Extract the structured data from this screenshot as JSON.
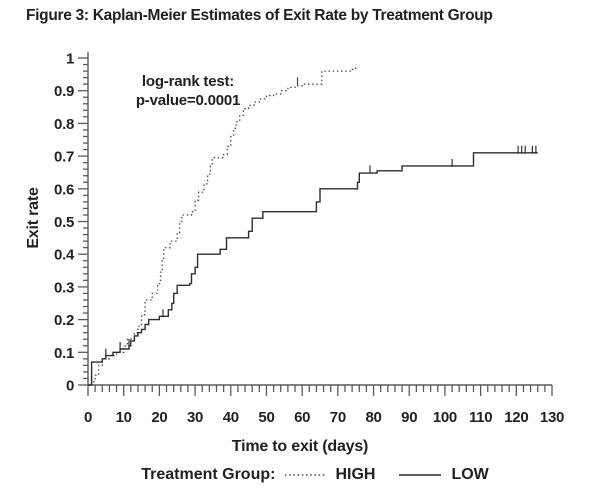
{
  "title": "Figure 3: Kaplan-Meier Estimates of  Exit Rate by Treatment Group",
  "annotation": {
    "line1": "log-rank test:",
    "line2": "p-value=0.0001"
  },
  "legend": {
    "label": "Treatment Group:",
    "entries": [
      {
        "name": "HIGH",
        "style": "dotted"
      },
      {
        "name": "LOW",
        "style": "solid"
      }
    ]
  },
  "colors": {
    "ink": "#231f20",
    "axis": "#595a5c",
    "curve_high": "#4b4b4b",
    "curve_low": "#2e2e2e"
  },
  "chart_data": {
    "type": "line",
    "subtype": "kaplan-meier-step",
    "title": "Figure 3: Kaplan-Meier Estimates of  Exit Rate by Treatment Group",
    "xlabel": "Time to exit (days)",
    "ylabel": "Exit rate",
    "xlim": [
      0,
      130
    ],
    "ylim": [
      0,
      1
    ],
    "grid": false,
    "legend_position": "bottom",
    "annotation": "log-rank test: p-value=0.0001",
    "x_major_ticks": [
      0,
      10,
      20,
      30,
      40,
      50,
      60,
      70,
      80,
      90,
      100,
      110,
      120,
      130
    ],
    "x_tick_labels": [
      "0",
      "10",
      "20",
      "30",
      "40",
      "50",
      "60",
      "70",
      "80",
      "90",
      "100",
      "110",
      "120",
      "130"
    ],
    "x_minor_step": 2,
    "y_major_ticks": [
      0,
      0.1,
      0.2,
      0.3,
      0.4,
      0.5,
      0.6,
      0.7,
      0.8,
      0.9,
      1
    ],
    "y_tick_labels": [
      "0",
      "0.1",
      "0.2",
      "0.3",
      "0.4",
      "0.5",
      "0.6",
      "0.7",
      "0.8",
      "0.9",
      "1"
    ],
    "y_minor_step": 0.02,
    "series": [
      {
        "name": "HIGH",
        "style": "dotted",
        "points": [
          [
            0,
            0
          ],
          [
            1,
            0.01
          ],
          [
            2,
            0.03
          ],
          [
            3,
            0.06
          ],
          [
            4,
            0.08
          ],
          [
            6,
            0.09
          ],
          [
            8,
            0.1
          ],
          [
            10,
            0.12
          ],
          [
            11,
            0.14
          ],
          [
            13,
            0.16
          ],
          [
            14,
            0.18
          ],
          [
            15,
            0.215
          ],
          [
            16,
            0.26
          ],
          [
            18,
            0.28
          ],
          [
            19.5,
            0.31
          ],
          [
            20.3,
            0.345
          ],
          [
            20.8,
            0.38
          ],
          [
            21.2,
            0.42
          ],
          [
            23,
            0.44
          ],
          [
            25,
            0.465
          ],
          [
            25.7,
            0.5
          ],
          [
            26.3,
            0.52
          ],
          [
            29,
            0.53
          ],
          [
            30,
            0.565
          ],
          [
            31,
            0.59
          ],
          [
            32.5,
            0.615
          ],
          [
            33.5,
            0.645
          ],
          [
            34.3,
            0.67
          ],
          [
            34.8,
            0.695
          ],
          [
            38,
            0.705
          ],
          [
            39,
            0.73
          ],
          [
            40,
            0.76
          ],
          [
            40.8,
            0.785
          ],
          [
            41.5,
            0.805
          ],
          [
            42.5,
            0.825
          ],
          [
            43.5,
            0.845
          ],
          [
            45,
            0.855
          ],
          [
            46.5,
            0.865
          ],
          [
            48,
            0.875
          ],
          [
            50,
            0.885
          ],
          [
            52,
            0.89
          ],
          [
            54,
            0.9
          ],
          [
            56,
            0.91
          ],
          [
            58,
            0.915
          ],
          [
            60,
            0.92
          ],
          [
            65.5,
            0.96
          ],
          [
            74,
            0.965
          ],
          [
            75,
            0.98
          ]
        ],
        "end_day": 75,
        "censor_marks": [
          [
            58.7,
            0.92
          ]
        ]
      },
      {
        "name": "LOW",
        "style": "solid",
        "points": [
          [
            0,
            0
          ],
          [
            1,
            0.07
          ],
          [
            4,
            0.08
          ],
          [
            5,
            0.09
          ],
          [
            7,
            0.1
          ],
          [
            9,
            0.11
          ],
          [
            11.5,
            0.12
          ],
          [
            12,
            0.135
          ],
          [
            13,
            0.15
          ],
          [
            14,
            0.16
          ],
          [
            15,
            0.17
          ],
          [
            16,
            0.185
          ],
          [
            17,
            0.2
          ],
          [
            20,
            0.21
          ],
          [
            22.5,
            0.23
          ],
          [
            23.5,
            0.25
          ],
          [
            24,
            0.28
          ],
          [
            25,
            0.305
          ],
          [
            28.5,
            0.31
          ],
          [
            29,
            0.34
          ],
          [
            30,
            0.36
          ],
          [
            30.7,
            0.4
          ],
          [
            37,
            0.415
          ],
          [
            38.8,
            0.45
          ],
          [
            45,
            0.47
          ],
          [
            46,
            0.51
          ],
          [
            49,
            0.53
          ],
          [
            64,
            0.56
          ],
          [
            65,
            0.6
          ],
          [
            75.5,
            0.62
          ],
          [
            76,
            0.648
          ],
          [
            81,
            0.655
          ],
          [
            88,
            0.67
          ],
          [
            108,
            0.71
          ],
          [
            126,
            0.71
          ]
        ],
        "end_day": 126,
        "censor_marks": [
          [
            5,
            0.09
          ],
          [
            9,
            0.11
          ],
          [
            11.5,
            0.12
          ],
          [
            21,
            0.21
          ],
          [
            79,
            0.65
          ],
          [
            102,
            0.67
          ],
          [
            120.5,
            0.71
          ],
          [
            121.5,
            0.71
          ],
          [
            122.5,
            0.71
          ],
          [
            124.5,
            0.71
          ],
          [
            125.5,
            0.71
          ]
        ]
      }
    ]
  }
}
